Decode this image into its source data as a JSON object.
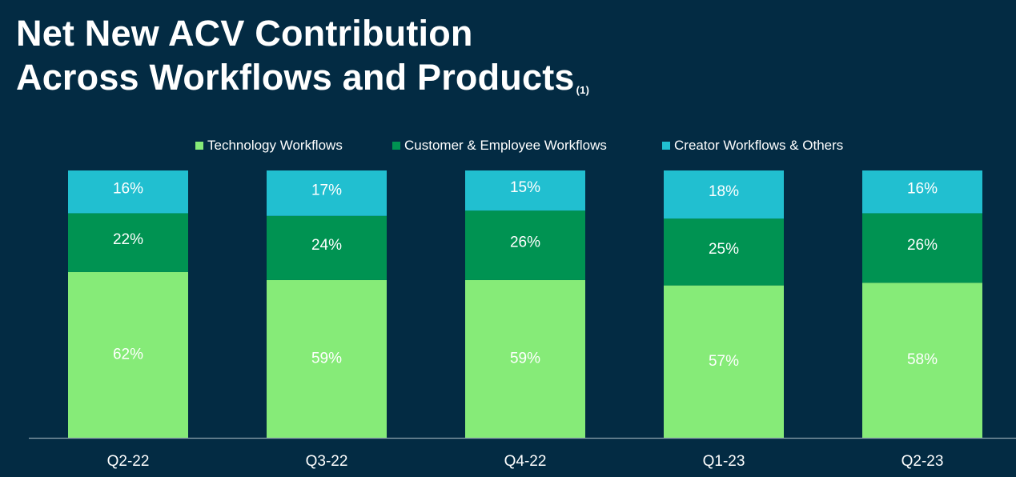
{
  "title": {
    "line1": "Net New ACV Contribution",
    "line2": "Across Workflows and Products",
    "footnote_marker": "(1)"
  },
  "colors": {
    "background": "#032B43",
    "technology": "#86EB78",
    "customer_employee": "#009352",
    "creator_others": "#21BFD0",
    "axis": "#8FA3AF",
    "text": "#FFFFFF"
  },
  "legend": [
    {
      "label": "Technology Workflows",
      "color": "#86EB78"
    },
    {
      "label": "Customer & Employee Workflows",
      "color": "#009352"
    },
    {
      "label": "Creator Workflows & Others",
      "color": "#21BFD0"
    }
  ],
  "chart_data": {
    "type": "bar",
    "stacked": true,
    "categories": [
      "Q2-22",
      "Q3-22",
      "Q4-22",
      "Q1-23",
      "Q2-23"
    ],
    "series": [
      {
        "name": "Technology Workflows",
        "values": [
          62,
          59,
          59,
          57,
          58
        ],
        "labels": [
          "62%",
          "59%",
          "59%",
          "57%",
          "58%"
        ]
      },
      {
        "name": "Customer & Employee Workflows",
        "values": [
          22,
          24,
          26,
          25,
          26
        ],
        "labels": [
          "22%",
          "24%",
          "26%",
          "25%",
          "26%"
        ]
      },
      {
        "name": "Creator Workflows & Others",
        "values": [
          16,
          17,
          15,
          18,
          16
        ],
        "labels": [
          "16%",
          "17%",
          "15%",
          "18%",
          "16%"
        ]
      }
    ],
    "ylim": [
      0,
      100
    ],
    "unit": "%",
    "legend_position": "top-center",
    "grid": false
  }
}
